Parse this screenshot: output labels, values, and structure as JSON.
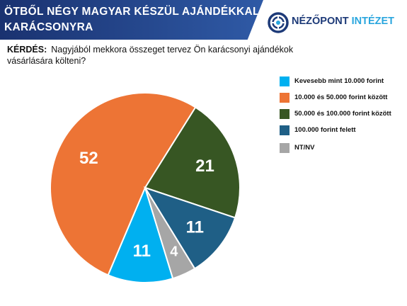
{
  "header": {
    "title_line1": "ÖTBŐL NÉGY MAGYAR KÉSZÜL AJÁNDÉKKAL",
    "title_line2": "KARÁCSONYRA",
    "banner_color": "#1f3b7a"
  },
  "logo": {
    "word1": "NÉZŐPONT",
    "word2": "INTÉZET",
    "icon": "target-icon",
    "color_dark": "#1d3a78",
    "color_light": "#2aa6de"
  },
  "question": {
    "label": "KÉRDÉS:",
    "text": "Nagyjából mekkora összeget tervez Ön karácsonyi ajándékok vásárlására költeni?"
  },
  "chart_data": {
    "type": "pie",
    "legend_position": "right",
    "slices": [
      {
        "label": "Kevesebb mint 10.000 forint",
        "value": 11,
        "color": "#00b0f0"
      },
      {
        "label": "10.000 és 50.000 forint között",
        "value": 52,
        "color": "#ed7435"
      },
      {
        "label": "50.000 és 100.000 forint között",
        "value": 21,
        "color": "#375623"
      },
      {
        "label": "100.000 forint felett",
        "value": 11,
        "color": "#1f5f86"
      },
      {
        "label": "NT/NV",
        "value": 4,
        "color": "#a6a6a6"
      }
    ]
  }
}
